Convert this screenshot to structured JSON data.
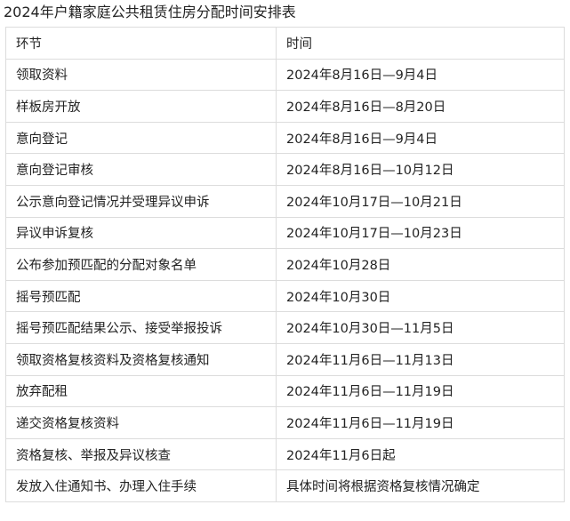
{
  "title": "2024年户籍家庭公共租赁住房分配时间安排表",
  "headers": [
    "环节",
    "时间"
  ],
  "rows": [
    [
      "领取资料",
      "2024年8月16日—9月4日"
    ],
    [
      "样板房开放",
      "2024年8月16日—8月20日"
    ],
    [
      "意向登记",
      "2024年8月16日—9月4日"
    ],
    [
      "意向登记审核",
      "2024年8月16日—10月12日"
    ],
    [
      "公示意向登记情况并受理异议申诉",
      "2024年10月17日—10月21日"
    ],
    [
      "异议申诉复核",
      "2024年10月17日—10月23日"
    ],
    [
      "公布参加预匹配的分配对象名单",
      "2024年10月28日"
    ],
    [
      "摇号预匹配",
      "2024年10月30日"
    ],
    [
      "摇号预匹配结果公示、接受举报投诉",
      "2024年10月30日—11月5日"
    ],
    [
      "领取资格复核资料及资格复核通知",
      "2024年11月6日—11月13日"
    ],
    [
      "放弃配租",
      "2024年11月6日—11月19日"
    ],
    [
      "递交资格复核资料",
      "2024年11月6日—11月19日"
    ],
    [
      "资格复核、举报及异议核查",
      "2024年11月6日起"
    ],
    [
      "发放入住通知书、办理入住手续",
      "具体时间将根据资格复核情况确定"
    ]
  ]
}
